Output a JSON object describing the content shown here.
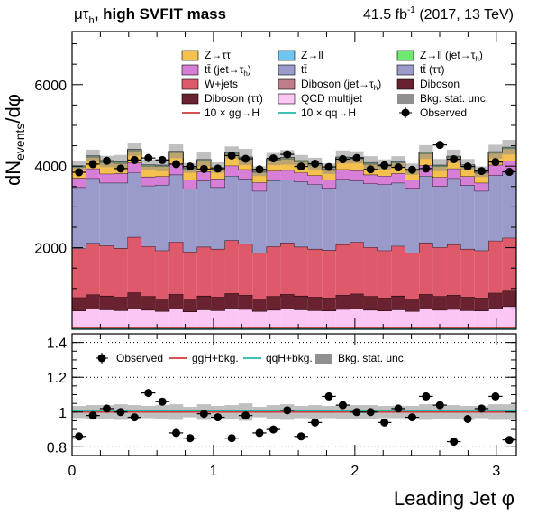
{
  "header": {
    "channel": "μτ",
    "channel_sub": "h",
    "title": ", high SVFIT mass",
    "lumi": "41.5 fb",
    "lumi_sup": "-1",
    "run": "(2017, 13 TeV)"
  },
  "axes": {
    "ylabel_main": "dN",
    "ylabel_sub": "events",
    "ylabel_tail": "/dφ",
    "xlabel": "Leading Jet  φ",
    "main_yticks": [
      "2000",
      "4000",
      "6000"
    ],
    "ratio_yticks": [
      "0.8",
      "1",
      "1.2",
      "1.4"
    ],
    "xticks": [
      "0",
      "1",
      "2",
      "3"
    ]
  },
  "legend_main": [
    {
      "label": "Z→ττ",
      "color": "#f6c04e",
      "kind": "box"
    },
    {
      "label": "Z→ll",
      "color": "#6ec5ef",
      "kind": "box"
    },
    {
      "label": "Z→ll (jet→τ",
      "sub": "h",
      "tail": ")",
      "color": "#6ee86e",
      "kind": "box"
    },
    {
      "label": "tt̄ (jet→τ",
      "sub": "h",
      "tail": ")",
      "color": "#d77fd7",
      "kind": "box"
    },
    {
      "label": "tt̄",
      "color": "#9a9acb",
      "kind": "box"
    },
    {
      "label": "tt̄ (ττ)",
      "color": "#9a9acb",
      "kind": "box"
    },
    {
      "label": "W+jets",
      "color": "#de5a6a",
      "kind": "box"
    },
    {
      "label": "Diboson (jet→τ",
      "sub": "h",
      "tail": ")",
      "color": "#c07d8a",
      "kind": "box"
    },
    {
      "label": "Diboson",
      "color": "#6b2230",
      "kind": "box"
    },
    {
      "label": "Diboson (ττ)",
      "color": "#6b2230",
      "kind": "box"
    },
    {
      "label": "QCD multijet",
      "color": "#fcc6f4",
      "kind": "box"
    },
    {
      "label": "Bkg. stat. unc.",
      "color": "#909090",
      "kind": "box"
    },
    {
      "label": "10 × gg→H",
      "color": "#d23a3a",
      "kind": "line"
    },
    {
      "label": "10 × qq→H",
      "color": "#25b8a8",
      "kind": "line"
    },
    {
      "label": "Observed",
      "color": "#000000",
      "kind": "marker"
    }
  ],
  "legend_ratio": [
    {
      "label": "Observed",
      "color": "#000000",
      "kind": "marker"
    },
    {
      "label": "ggH+bkg.",
      "color": "#d23a3a",
      "kind": "line"
    },
    {
      "label": "qqH+bkg.",
      "color": "#25b8a8",
      "kind": "line"
    },
    {
      "label": "Bkg. stat. unc.",
      "color": "#909090",
      "kind": "box"
    }
  ],
  "chart_data": {
    "type": "bar",
    "stacked": true,
    "x_range": [
      0,
      3.1416
    ],
    "n_bins": 32,
    "ylim_main": [
      0,
      7300
    ],
    "ylim_ratio": [
      0.75,
      1.45
    ],
    "grid": false,
    "legend_position": "top",
    "series": [
      {
        "name": "QCD multijet",
        "color": "#fcc6f4",
        "values": [
          450,
          500,
          480,
          460,
          520,
          470,
          440,
          500,
          430,
          480,
          460,
          520,
          490,
          440,
          470,
          500,
          480,
          460,
          450,
          490,
          510,
          470,
          450,
          480,
          440,
          500,
          470,
          490,
          460,
          450,
          520,
          560
        ]
      },
      {
        "name": "Diboson (ττ)",
        "color": "#6b2230",
        "values": [
          330,
          350,
          340,
          330,
          380,
          340,
          310,
          360,
          320,
          340,
          330,
          360,
          350,
          310,
          340,
          360,
          340,
          330,
          320,
          350,
          360,
          340,
          320,
          340,
          310,
          360,
          340,
          350,
          330,
          320,
          370,
          380
        ]
      },
      {
        "name": "W+jets",
        "color": "#de5a6a",
        "values": [
          1200,
          1260,
          1230,
          1200,
          1360,
          1220,
          1180,
          1280,
          1150,
          1200,
          1180,
          1300,
          1250,
          1120,
          1220,
          1260,
          1200,
          1180,
          1170,
          1240,
          1270,
          1200,
          1160,
          1220,
          1130,
          1260,
          1200,
          1240,
          1180,
          1160,
          1280,
          1300
        ]
      },
      {
        "name": "tt̄",
        "color": "#9a9acb",
        "values": [
          1500,
          1590,
          1540,
          1600,
          1580,
          1490,
          1610,
          1650,
          1550,
          1620,
          1510,
          1580,
          1600,
          1520,
          1620,
          1540,
          1600,
          1580,
          1520,
          1600,
          1500,
          1560,
          1620,
          1550,
          1580,
          1640,
          1500,
          1620,
          1560,
          1460,
          1600,
          1620
        ]
      },
      {
        "name": "tt̄ (jet→τh)",
        "color": "#d77fd7",
        "values": [
          230,
          240,
          220,
          230,
          250,
          220,
          210,
          260,
          220,
          230,
          210,
          250,
          230,
          210,
          230,
          240,
          220,
          220,
          200,
          240,
          250,
          220,
          210,
          230,
          200,
          260,
          220,
          240,
          220,
          200,
          260,
          270
        ]
      },
      {
        "name": "Z→ττ",
        "color": "#f6c04e",
        "values": [
          260,
          280,
          270,
          250,
          290,
          260,
          240,
          280,
          250,
          260,
          240,
          290,
          270,
          240,
          260,
          280,
          260,
          250,
          240,
          270,
          290,
          260,
          240,
          260,
          230,
          290,
          260,
          270,
          250,
          240,
          290,
          300
        ]
      },
      {
        "name": "Z→ll (jet→τh)",
        "color": "#6ee86e",
        "values": [
          20,
          20,
          20,
          20,
          20,
          20,
          20,
          20,
          20,
          20,
          20,
          20,
          20,
          20,
          20,
          20,
          20,
          20,
          20,
          20,
          20,
          20,
          20,
          20,
          20,
          20,
          20,
          20,
          20,
          20,
          20,
          20
        ]
      },
      {
        "name": "Z→ll",
        "color": "#6ec5ef",
        "values": [
          15,
          15,
          15,
          15,
          15,
          15,
          15,
          15,
          15,
          15,
          15,
          15,
          15,
          15,
          15,
          15,
          15,
          15,
          15,
          15,
          15,
          15,
          15,
          15,
          15,
          15,
          15,
          15,
          15,
          15,
          15,
          15
        ]
      }
    ],
    "unc": [
      110,
      150,
      140,
      170,
      160,
      130,
      150,
      170,
      120,
      170,
      130,
      150,
      200,
      120,
      150,
      180,
      140,
      150,
      130,
      160,
      150,
      160,
      130,
      130,
      140,
      170,
      150,
      160,
      140,
      130,
      170,
      180
    ],
    "observed": [
      3850,
      4050,
      4130,
      3940,
      4150,
      4200,
      4150,
      4050,
      3990,
      3930,
      3940,
      4260,
      4180,
      3920,
      4190,
      4290,
      3990,
      4060,
      3980,
      4170,
      4200,
      3920,
      4020,
      3970,
      3910,
      3940,
      4520,
      4170,
      3990,
      3880,
      4100,
      3860
    ],
    "observed_err": [
      65,
      65,
      65,
      65,
      65,
      65,
      65,
      65,
      65,
      65,
      65,
      65,
      65,
      65,
      65,
      65,
      65,
      65,
      65,
      65,
      65,
      65,
      65,
      65,
      65,
      65,
      65,
      65,
      65,
      65,
      65,
      65
    ],
    "ratio": [
      0.86,
      0.98,
      1.02,
      1.0,
      0.97,
      1.11,
      1.06,
      0.88,
      0.85,
      0.99,
      0.97,
      0.85,
      0.98,
      0.88,
      0.9,
      1.01,
      0.86,
      0.94,
      1.09,
      1.04,
      1.0,
      1.0,
      0.94,
      1.02,
      0.97,
      1.09,
      1.04,
      0.83,
      0.96,
      1.02,
      1.09,
      0.84
    ],
    "ratio_err": [
      0.02,
      0.02,
      0.02,
      0.02,
      0.02,
      0.02,
      0.02,
      0.02,
      0.02,
      0.02,
      0.02,
      0.02,
      0.02,
      0.02,
      0.02,
      0.02,
      0.02,
      0.02,
      0.02,
      0.02,
      0.02,
      0.02,
      0.02,
      0.02,
      0.02,
      0.02,
      0.02,
      0.02,
      0.02,
      0.02,
      0.02,
      0.02
    ],
    "ratio_unc": [
      0.035,
      0.04,
      0.04,
      0.045,
      0.04,
      0.035,
      0.04,
      0.045,
      0.03,
      0.045,
      0.035,
      0.04,
      0.05,
      0.03,
      0.04,
      0.045,
      0.035,
      0.04,
      0.035,
      0.04,
      0.04,
      0.04,
      0.035,
      0.035,
      0.035,
      0.045,
      0.04,
      0.04,
      0.035,
      0.035,
      0.045,
      0.045
    ]
  }
}
